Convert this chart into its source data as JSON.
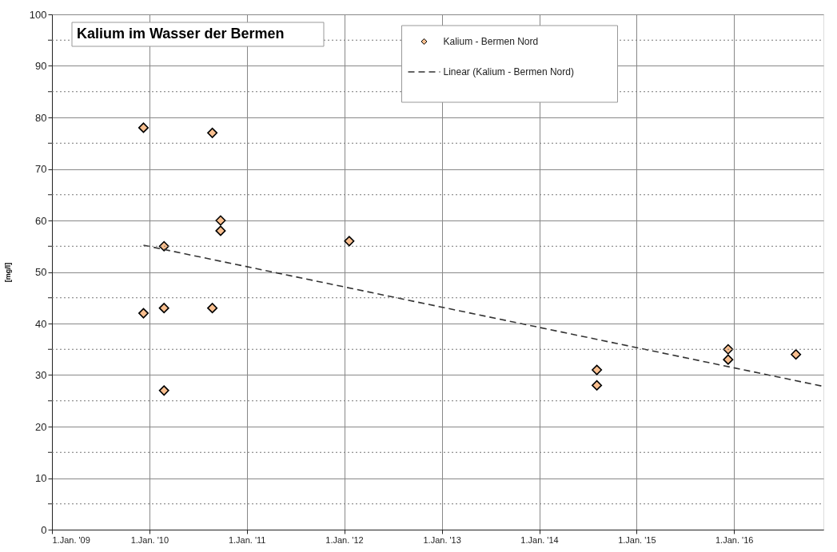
{
  "chart_data": {
    "type": "scatter",
    "title": "Kalium im Wasser der Bermen",
    "ylabel": "[mg/l]",
    "series": [
      {
        "name": "Kalium - Bermen Nord",
        "color": "#f9bf8f",
        "marker": "diamond",
        "x": [
          "2009-12-10",
          "2009-12-10",
          "2010-02-25",
          "2010-02-25",
          "2010-02-25",
          "2010-08-25",
          "2010-08-25",
          "2010-09-25",
          "2010-09-25",
          "2012-01-20",
          "2014-08-05",
          "2014-08-05",
          "2015-12-10",
          "2015-12-10",
          "2016-08-20"
        ],
        "values": [
          78,
          42,
          55,
          43,
          27,
          77,
          43,
          60,
          58,
          56,
          31,
          28,
          35,
          33,
          34
        ]
      },
      {
        "name": "Linear (Kalium - Bermen Nord)",
        "type": "line",
        "color": "#333333",
        "line_style": "dashed",
        "x": [
          "2009-12-10",
          "2016-12-01"
        ],
        "values": [
          55.2,
          27.8
        ]
      }
    ],
    "xlim": [
      "2009-01-01",
      "2016-12-01"
    ],
    "xticks": [
      {
        "value": "2009-01-01",
        "label": "1.Jan. '09"
      },
      {
        "value": "2010-01-01",
        "label": "1.Jan. '10"
      },
      {
        "value": "2011-01-01",
        "label": "1.Jan. '11"
      },
      {
        "value": "2012-01-01",
        "label": "1.Jan. '12"
      },
      {
        "value": "2013-01-01",
        "label": "1.Jan. '13"
      },
      {
        "value": "2014-01-01",
        "label": "1.Jan. '14"
      },
      {
        "value": "2015-01-01",
        "label": "1.Jan. '15"
      },
      {
        "value": "2016-01-01",
        "label": "1.Jan. '16"
      }
    ],
    "ylim": [
      0,
      100
    ],
    "yticks": [
      0,
      {
        "value": 5,
        "label": null
      },
      10,
      {
        "value": 15,
        "label": null
      },
      20,
      {
        "value": 25,
        "label": null
      },
      30,
      {
        "value": 35,
        "label": null
      },
      40,
      {
        "value": 45,
        "label": null
      },
      50,
      {
        "value": 55,
        "label": null
      },
      60,
      {
        "value": 65,
        "label": null
      },
      70,
      {
        "value": 75,
        "label": null
      },
      80,
      {
        "value": 85,
        "label": null
      },
      90,
      {
        "value": 95,
        "label": null
      },
      100
    ],
    "grid": true,
    "legend": "top"
  }
}
